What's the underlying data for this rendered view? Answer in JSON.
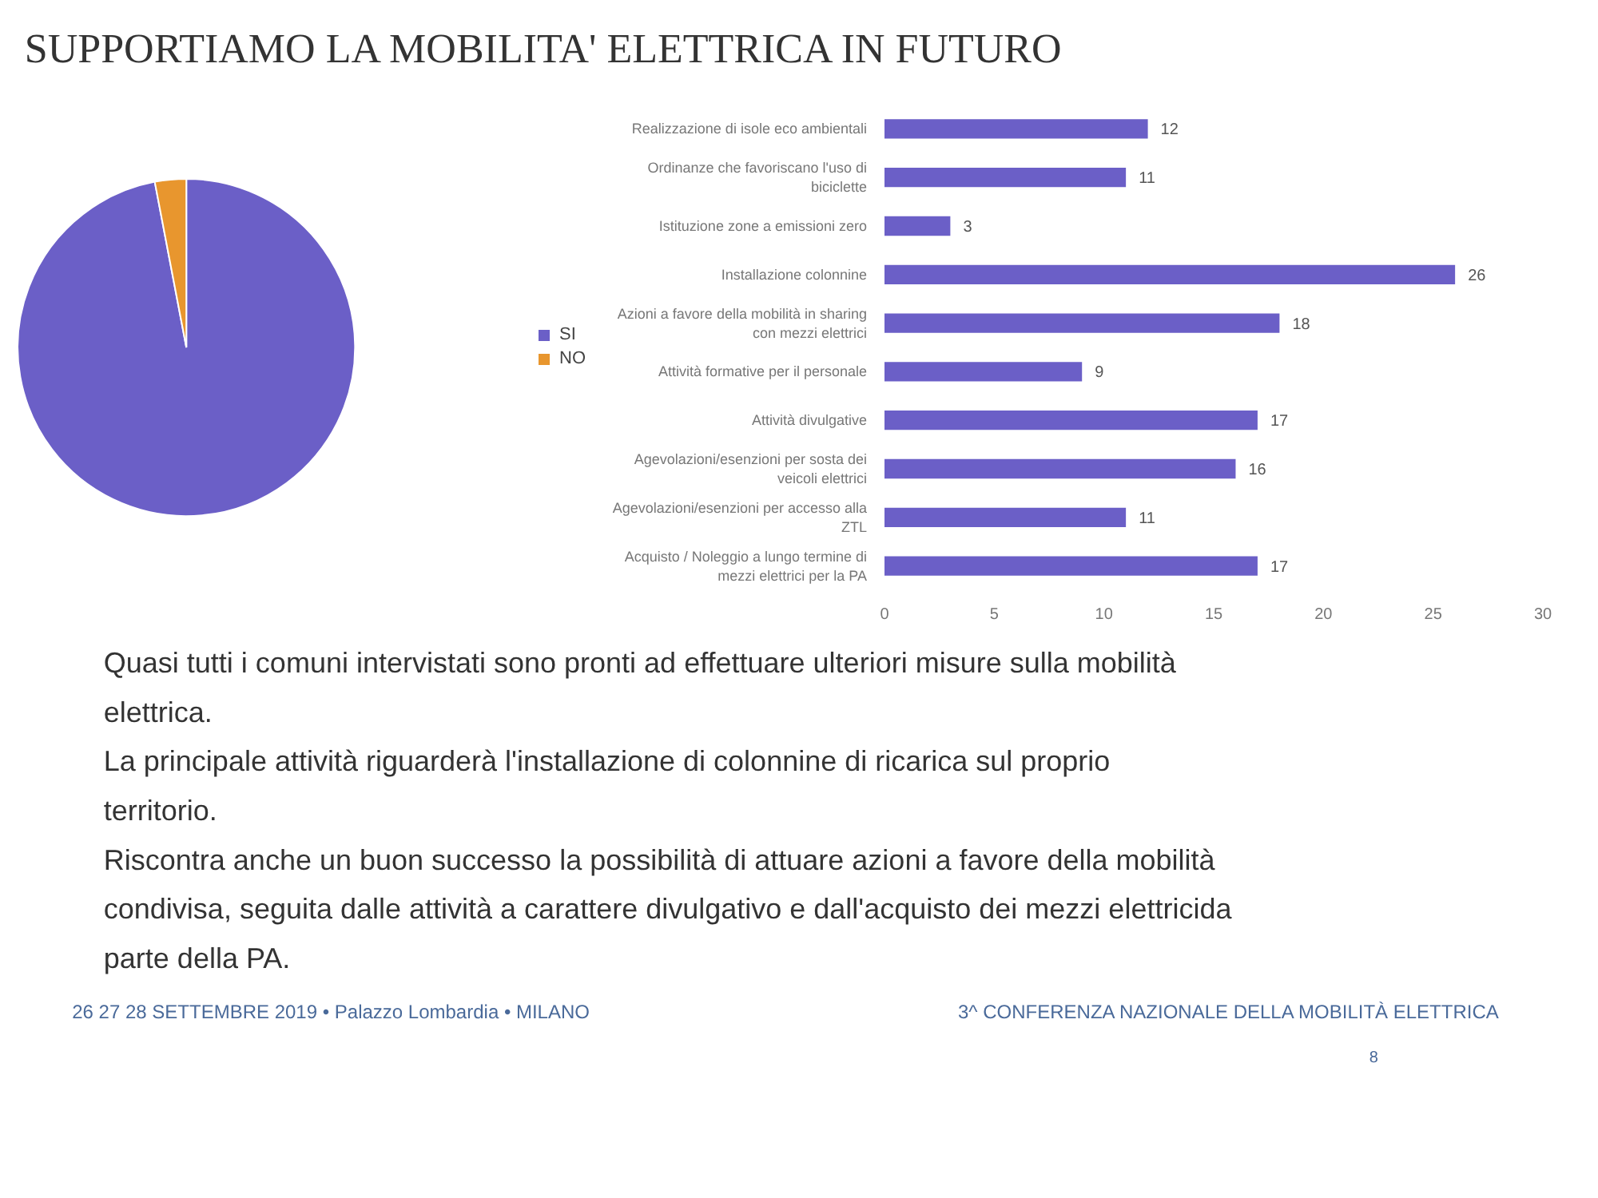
{
  "chart_data": [
    {
      "type": "pie",
      "title": "SUPPORTIAMO LA MOBILITA' ELETTRICA IN FUTURO",
      "categories": [
        "SI",
        "NO"
      ],
      "values": [
        97,
        3
      ],
      "colors": [
        "#6b5fc7",
        "#e8962e"
      ],
      "legend": "right"
    },
    {
      "type": "bar",
      "orientation": "horizontal",
      "categories": [
        "Realizzazione di isole eco ambientali",
        "Ordinanze che favoriscano l'uso di biciclette",
        "Istituzione zone a emissioni zero",
        "Installazione colonnine",
        "Azioni a favore della mobilità in sharing con mezzi elettrici",
        "Attività formative per il personale",
        "Attività divulgative",
        "Agevolazioni/esenzioni per sosta dei veicoli elettrici",
        "Agevolazioni/esenzioni per accesso alla ZTL",
        "Acquisto / Noleggio a lungo termine di mezzi elettrici per la PA"
      ],
      "values": [
        12,
        11,
        3,
        26,
        18,
        9,
        17,
        16,
        11,
        17
      ],
      "color": "#6b5fc7",
      "xlim": [
        0,
        30
      ],
      "xticks": [
        0,
        5,
        10,
        15,
        20,
        25,
        30
      ],
      "data_labels": true,
      "grid": false,
      "annotations": [
        "Quasi tutti i comuni intervistati sono pronti ad effettuare ulteriori misure sulla mobilità elettrica.",
        "La principale attività riguarderà l'installazione di colonnine di ricarica sul proprio territorio.",
        "Riscontra anche un buon successo la possibilità di attuare azioni a favore della mobilità condivisa, seguita dalle attività a carattere divulgativo e dall'acquisto dei mezzi elettricida parte della PA.",
        "26 27 28 SETTEMBRE 2019 • Palazzo Lombardia • MILANO",
        "3^ CONFERENZA NAZIONALE DELLA MOBILITÀ ELETTRICA",
        "8"
      ]
    }
  ]
}
